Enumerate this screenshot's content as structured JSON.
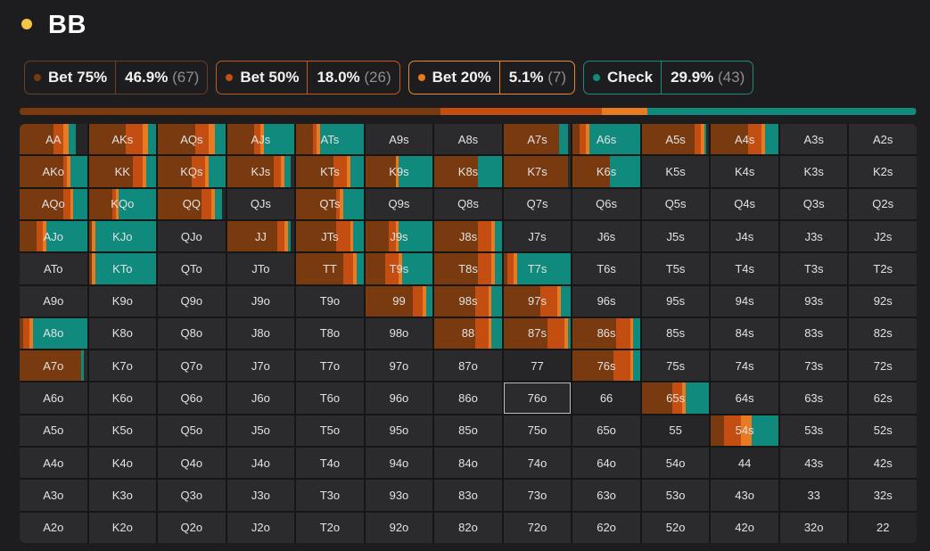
{
  "header": {
    "title": "BB"
  },
  "colors": {
    "bet75": "#7a3a10",
    "bet50": "#c44e12",
    "bet20": "#e87a22",
    "check": "#0f8a7c",
    "border_bet75": "#6b3f24",
    "border_bet50": "#c25a1f",
    "border_bet20": "#e58a32",
    "border_check": "#1a8c80"
  },
  "legend": [
    {
      "key": "bet75",
      "label": "Bet 75%",
      "pct": "46.9%",
      "count": "(67)",
      "fraction": 0.469
    },
    {
      "key": "bet50",
      "label": "Bet 50%",
      "pct": "18.0%",
      "count": "(26)",
      "fraction": 0.18
    },
    {
      "key": "bet20",
      "label": "Bet 20%",
      "pct": "5.1%",
      "count": "(7)",
      "fraction": 0.051
    },
    {
      "key": "check",
      "label": "Check",
      "pct": "29.9%",
      "count": "(43)",
      "fraction": 0.299
    }
  ],
  "grid": {
    "selected": "76o",
    "rows": [
      [
        "AA",
        "AKs",
        "AQs",
        "AJs",
        "ATs",
        "A9s",
        "A8s",
        "A7s",
        "A6s",
        "A5s",
        "A4s",
        "A3s",
        "A2s"
      ],
      [
        "AKo",
        "KK",
        "KQs",
        "KJs",
        "KTs",
        "K9s",
        "K8s",
        "K7s",
        "K6s",
        "K5s",
        "K4s",
        "K3s",
        "K2s"
      ],
      [
        "AQo",
        "KQo",
        "QQ",
        "QJs",
        "QTs",
        "Q9s",
        "Q8s",
        "Q7s",
        "Q6s",
        "Q5s",
        "Q4s",
        "Q3s",
        "Q2s"
      ],
      [
        "AJo",
        "KJo",
        "QJo",
        "JJ",
        "JTs",
        "J9s",
        "J8s",
        "J7s",
        "J6s",
        "J5s",
        "J4s",
        "J3s",
        "J2s"
      ],
      [
        "ATo",
        "KTo",
        "QTo",
        "JTo",
        "TT",
        "T9s",
        "T8s",
        "T7s",
        "T6s",
        "T5s",
        "T4s",
        "T3s",
        "T2s"
      ],
      [
        "A9o",
        "K9o",
        "Q9o",
        "J9o",
        "T9o",
        "99",
        "98s",
        "97s",
        "96s",
        "95s",
        "94s",
        "93s",
        "92s"
      ],
      [
        "A8o",
        "K8o",
        "Q8o",
        "J8o",
        "T8o",
        "98o",
        "88",
        "87s",
        "86s",
        "85s",
        "84s",
        "83s",
        "82s"
      ],
      [
        "A7o",
        "K7o",
        "Q7o",
        "J7o",
        "T7o",
        "97o",
        "87o",
        "77",
        "76s",
        "75s",
        "74s",
        "73s",
        "72s"
      ],
      [
        "A6o",
        "K6o",
        "Q6o",
        "J6o",
        "T6o",
        "96o",
        "86o",
        "76o",
        "66",
        "65s",
        "64s",
        "63s",
        "62s"
      ],
      [
        "A5o",
        "K5o",
        "Q5o",
        "J5o",
        "T5o",
        "95o",
        "85o",
        "75o",
        "65o",
        "55",
        "54s",
        "53s",
        "52s"
      ],
      [
        "A4o",
        "K4o",
        "Q4o",
        "J4o",
        "T4o",
        "94o",
        "84o",
        "74o",
        "64o",
        "54o",
        "44",
        "43s",
        "42s"
      ],
      [
        "A3o",
        "K3o",
        "Q3o",
        "J3o",
        "T3o",
        "93o",
        "83o",
        "73o",
        "63o",
        "53o",
        "43o",
        "33",
        "32s"
      ],
      [
        "A2o",
        "K2o",
        "Q2o",
        "J2o",
        "T2o",
        "92o",
        "82o",
        "72o",
        "62o",
        "52o",
        "42o",
        "32o",
        "22"
      ]
    ],
    "strategy": {
      "AA": [
        0.5,
        0.15,
        0.08,
        0.1
      ],
      "AKs": [
        0.55,
        0.25,
        0.08,
        0.12
      ],
      "AQs": [
        0.55,
        0.2,
        0.1,
        0.15
      ],
      "AJs": [
        0.4,
        0.1,
        0.05,
        0.45
      ],
      "ATs": [
        0.25,
        0.05,
        0.05,
        0.65
      ],
      "A7s": [
        0.82,
        0.0,
        0.0,
        0.13
      ],
      "A6s": [
        0.1,
        0.1,
        0.05,
        0.75
      ],
      "A5s": [
        0.78,
        0.1,
        0.05,
        0.02
      ],
      "A4s": [
        0.55,
        0.2,
        0.05,
        0.2
      ],
      "AKo": [
        0.65,
        0.05,
        0.05,
        0.25
      ],
      "KK": [
        0.65,
        0.15,
        0.05,
        0.15
      ],
      "KQs": [
        0.5,
        0.2,
        0.05,
        0.25
      ],
      "KJs": [
        0.7,
        0.1,
        0.05,
        0.1
      ],
      "KTs": [
        0.55,
        0.2,
        0.05,
        0.2
      ],
      "K9s": [
        0.45,
        0.0,
        0.05,
        0.5
      ],
      "K8s": [
        0.65,
        0.0,
        0.0,
        0.35
      ],
      "K7s": [
        0.95,
        0.0,
        0.0,
        0.0
      ],
      "K6s": [
        0.55,
        0.0,
        0.0,
        0.45
      ],
      "AQo": [
        0.65,
        0.1,
        0.05,
        0.2
      ],
      "KQo": [
        0.35,
        0.05,
        0.05,
        0.55
      ],
      "QQ": [
        0.65,
        0.15,
        0.05,
        0.1
      ],
      "QTs": [
        0.6,
        0.05,
        0.05,
        0.3
      ],
      "AJo": [
        0.25,
        0.1,
        0.05,
        0.6
      ],
      "KJo": [
        0.05,
        0.0,
        0.05,
        0.9
      ],
      "JJ": [
        0.75,
        0.1,
        0.05,
        0.05
      ],
      "JTs": [
        0.6,
        0.2,
        0.05,
        0.15
      ],
      "J9s": [
        0.35,
        0.1,
        0.05,
        0.5
      ],
      "J8s": [
        0.65,
        0.2,
        0.05,
        0.1
      ],
      "KTo": [
        0.05,
        0.0,
        0.05,
        0.9
      ],
      "TT": [
        0.7,
        0.15,
        0.05,
        0.1
      ],
      "T9s": [
        0.3,
        0.2,
        0.05,
        0.45
      ],
      "T8s": [
        0.65,
        0.2,
        0.05,
        0.1
      ],
      "T7s": [
        0.05,
        0.1,
        0.05,
        0.8
      ],
      "99": [
        0.7,
        0.15,
        0.05,
        0.1
      ],
      "98s": [
        0.6,
        0.2,
        0.05,
        0.15
      ],
      "97s": [
        0.55,
        0.25,
        0.05,
        0.15
      ],
      "A8o": [
        0.05,
        0.1,
        0.05,
        0.8
      ],
      "88": [
        0.6,
        0.2,
        0.05,
        0.15
      ],
      "87s": [
        0.65,
        0.25,
        0.05,
        0.05
      ],
      "86s": [
        0.65,
        0.2,
        0.05,
        0.1
      ],
      "A7o": [
        0.92,
        0.0,
        0.0,
        0.04
      ],
      "76s": [
        0.6,
        0.25,
        0.05,
        0.1
      ],
      "65s": [
        0.45,
        0.15,
        0.05,
        0.35
      ],
      "54s": [
        0.2,
        0.25,
        0.15,
        0.4
      ]
    }
  }
}
